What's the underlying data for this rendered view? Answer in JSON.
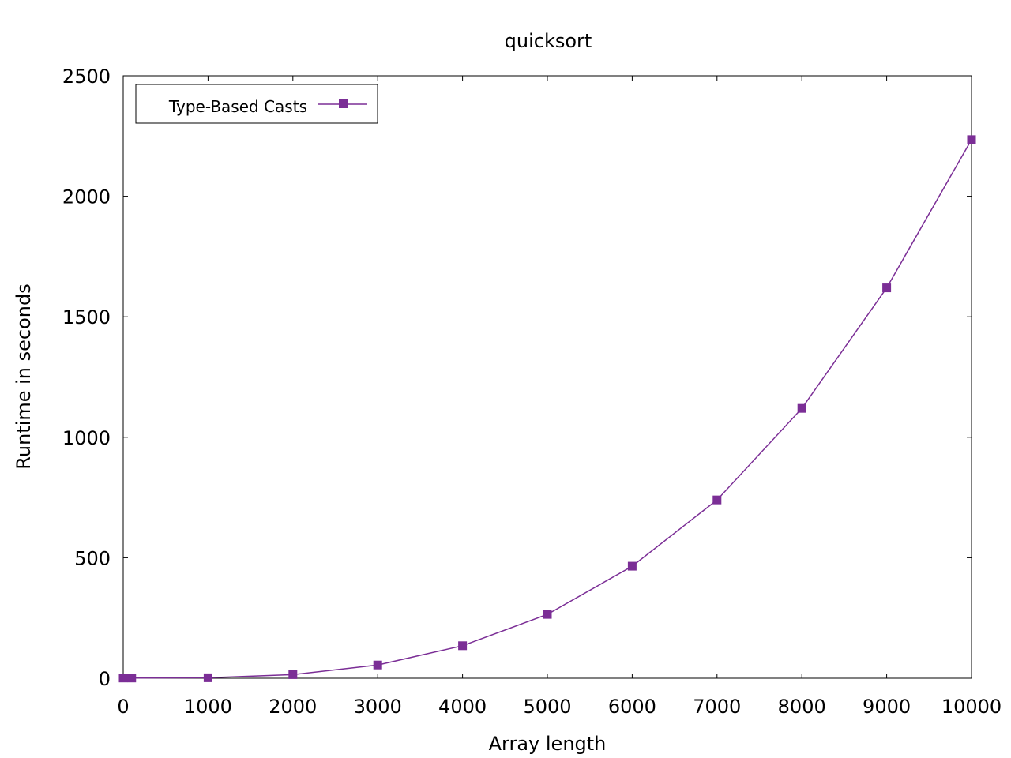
{
  "chart_data": {
    "type": "line",
    "title": "quicksort",
    "xlabel": "Array length",
    "ylabel": "Runtime in seconds",
    "xlim": [
      0,
      10000
    ],
    "ylim": [
      0,
      2500
    ],
    "xticks": [
      "0",
      "1000",
      "2000",
      "3000",
      "4000",
      "5000",
      "6000",
      "7000",
      "8000",
      "9000",
      "10000"
    ],
    "yticks": [
      "0",
      "500",
      "1000",
      "1500",
      "2000",
      "2500"
    ],
    "grid": false,
    "legend_position": "top-left",
    "series": [
      {
        "name": "Type-Based Casts",
        "color": "#7b2e96",
        "marker": "square",
        "x": [
          0,
          100,
          1000,
          2000,
          3000,
          4000,
          5000,
          6000,
          7000,
          8000,
          9000,
          10000
        ],
        "y": [
          1,
          1,
          2,
          15,
          55,
          135,
          265,
          465,
          740,
          1120,
          1620,
          2235
        ]
      }
    ]
  }
}
